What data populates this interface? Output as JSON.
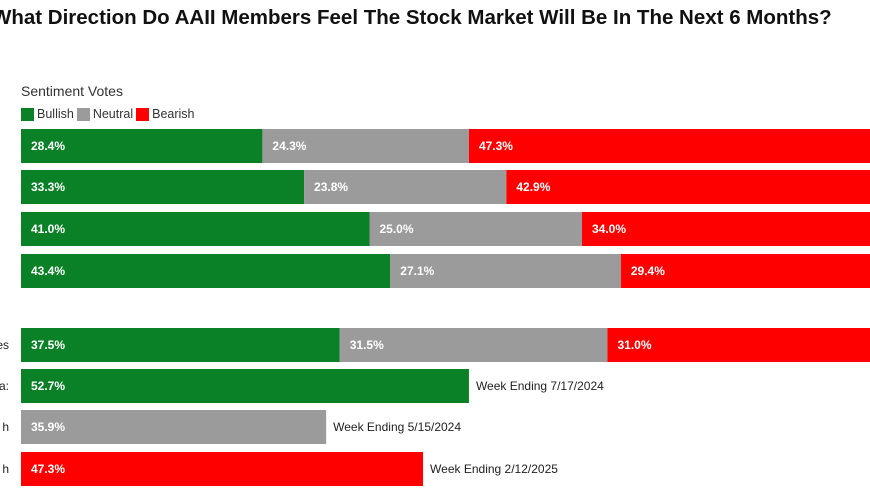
{
  "title": "What Direction Do AAII Members Feel The Stock Market Will Be In The Next 6 Months?",
  "legend": {
    "title": "Sentiment Votes",
    "items": [
      {
        "label": "Bullish",
        "color": "#0a8127"
      },
      {
        "label": "Neutral",
        "color": "#9b9b9b"
      },
      {
        "label": "Bearish",
        "color": "#ff0000"
      }
    ]
  },
  "chart_data": {
    "type": "bar",
    "orientation": "horizontal",
    "stacked_rows": [
      {
        "values": [
          28.4,
          24.3,
          47.3
        ],
        "labels": [
          "28.4%",
          "24.3%",
          "47.3%"
        ]
      },
      {
        "values": [
          33.3,
          23.8,
          42.9
        ],
        "labels": [
          "33.3%",
          "23.8%",
          "42.9%"
        ]
      },
      {
        "values": [
          41.0,
          25.0,
          34.0
        ],
        "labels": [
          "41.0%",
          "25.0%",
          "34.0%"
        ]
      },
      {
        "values": [
          43.4,
          27.1,
          29.4
        ],
        "labels": [
          "43.4%",
          "27.1%",
          "29.4%"
        ]
      },
      {
        "values": [
          37.5,
          31.5,
          31.0
        ],
        "labels": [
          "37.5%",
          "31.5%",
          "31.0%"
        ],
        "side_label": "es"
      }
    ],
    "single_rows": [
      {
        "value": 52.7,
        "label": "52.7%",
        "series": 0,
        "note": "Week Ending 7/17/2024",
        "side_label": "a:"
      },
      {
        "value": 35.9,
        "label": "35.9%",
        "series": 1,
        "note": "Week Ending 5/15/2024",
        "side_label": "h"
      },
      {
        "value": 47.3,
        "label": "47.3%",
        "series": 2,
        "note": "Week Ending 2/12/2025",
        "side_label": "h"
      }
    ],
    "series": [
      {
        "name": "Bullish",
        "color": "#0a8127"
      },
      {
        "name": "Neutral",
        "color": "#9b9b9b"
      },
      {
        "name": "Bearish",
        "color": "#ff0000"
      }
    ]
  }
}
